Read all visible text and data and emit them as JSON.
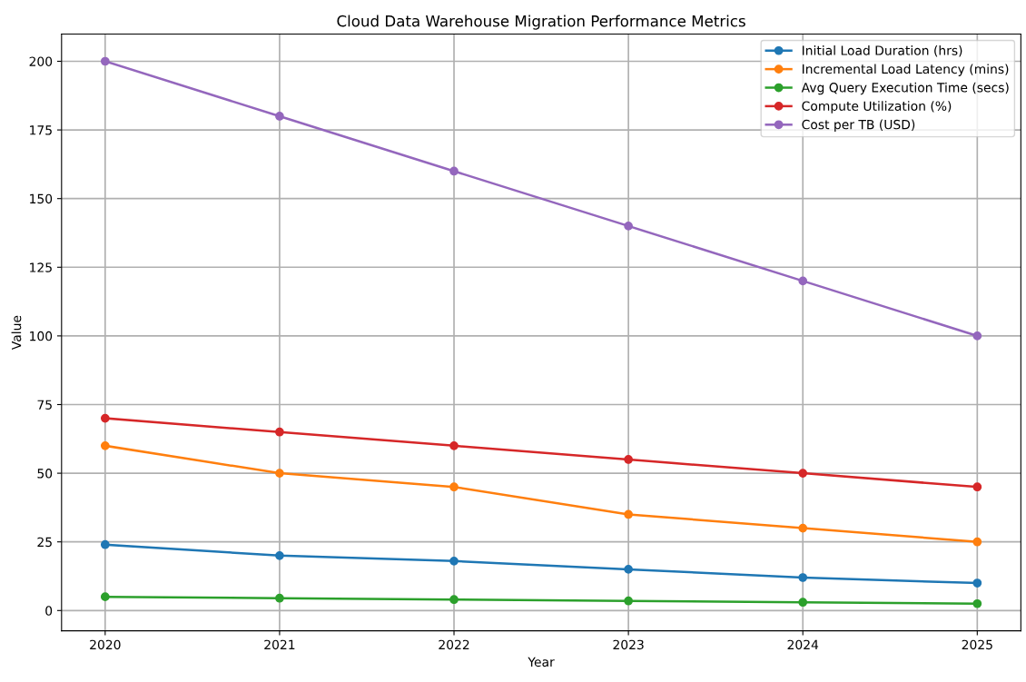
{
  "chart_data": {
    "type": "line",
    "title": "Cloud Data Warehouse Migration Performance Metrics",
    "xlabel": "Year",
    "ylabel": "Value",
    "x": [
      2020,
      2021,
      2022,
      2023,
      2024,
      2025
    ],
    "series": [
      {
        "name": "Initial Load Duration (hrs)",
        "color": "#1f77b4",
        "values": [
          24,
          20,
          18,
          15,
          12,
          10
        ]
      },
      {
        "name": "Incremental Load Latency (mins)",
        "color": "#ff7f0e",
        "values": [
          60,
          50,
          45,
          35,
          30,
          25
        ]
      },
      {
        "name": "Avg Query Execution Time (secs)",
        "color": "#2ca02c",
        "values": [
          5,
          4.5,
          4,
          3.5,
          3,
          2.5
        ]
      },
      {
        "name": "Compute Utilization (%)",
        "color": "#d62728",
        "values": [
          70,
          65,
          60,
          55,
          50,
          45
        ]
      },
      {
        "name": "Cost per TB (USD)",
        "color": "#9467bd",
        "values": [
          200,
          180,
          160,
          140,
          120,
          100
        ]
      }
    ],
    "xlim": [
      2019.75,
      2025.25
    ],
    "xticks": [
      2020,
      2021,
      2022,
      2023,
      2024,
      2025
    ],
    "ylim": [
      -7.4,
      209.9
    ],
    "yticks": [
      0,
      25,
      50,
      75,
      100,
      125,
      150,
      175,
      200
    ],
    "grid": true,
    "legend": "top right",
    "marker": "circle",
    "line_style": "solid"
  }
}
